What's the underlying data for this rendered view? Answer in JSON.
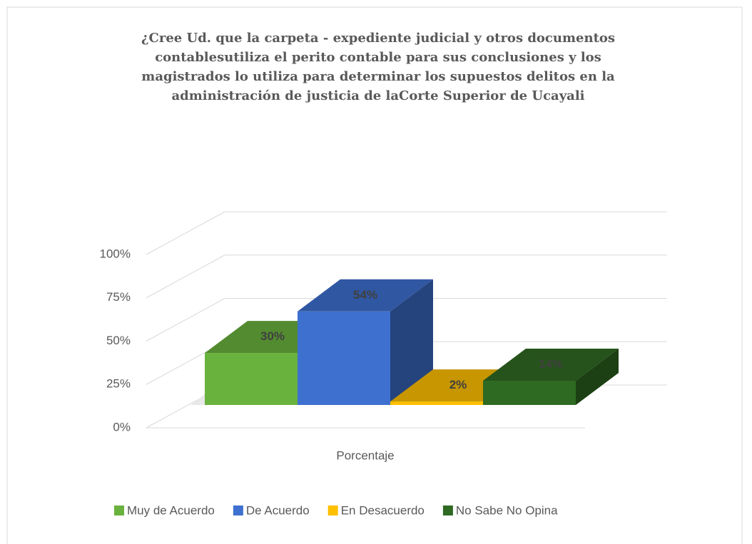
{
  "chart_data": {
    "type": "bar3d",
    "title": "¿Cree Ud. que la carpeta - expediente judicial y otros documentos contablesutiliza el perito contable para sus conclusiones y los magistrados lo utiliza para determinar los supuestos delitos en la administración de justicia de laCorte Superior de Ucayali",
    "categories": [
      "Porcentaje"
    ],
    "series": [
      {
        "name": "Muy de Acuerdo",
        "color": "#6ab23e",
        "values": [
          30
        ],
        "value_labels": [
          "30%"
        ]
      },
      {
        "name": "De Acuerdo",
        "color": "#3e70d0",
        "values": [
          54
        ],
        "value_labels": [
          "54%"
        ]
      },
      {
        "name": "En Desacuerdo",
        "color": "#ffc000",
        "values": [
          2
        ],
        "value_labels": [
          "2%"
        ]
      },
      {
        "name": "No Sabe No Opina",
        "color": "#2f6a22",
        "values": [
          14
        ],
        "value_labels": [
          "14%"
        ]
      }
    ],
    "ylim": [
      0,
      100
    ],
    "yticks": [
      {
        "value": 0,
        "label": "0%"
      },
      {
        "value": 25,
        "label": "25%"
      },
      {
        "value": 50,
        "label": "50%"
      },
      {
        "value": 75,
        "label": "75%"
      },
      {
        "value": 100,
        "label": "100%"
      }
    ],
    "grid": true,
    "legend": "bottom"
  }
}
